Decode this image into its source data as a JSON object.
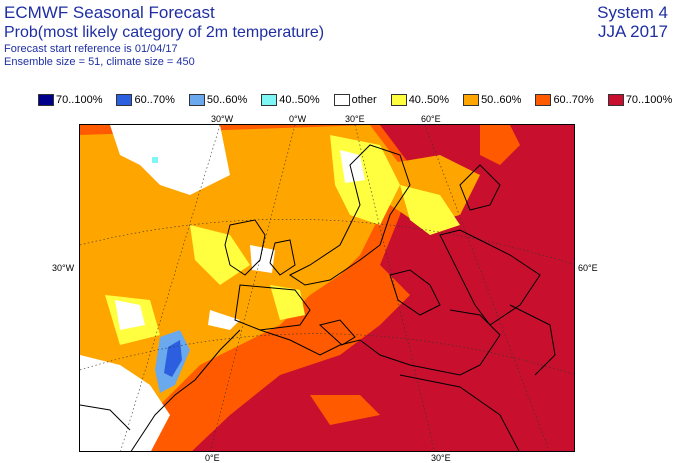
{
  "header": {
    "title": "ECMWF Seasonal Forecast",
    "subtitle": "Prob(most likely category of 2m temperature)",
    "line3": "Forecast start reference is 01/04/17",
    "line4": "Ensemble size = 51, climate size = 450",
    "system": "System 4",
    "season": "JJA 2017"
  },
  "legend": [
    {
      "label": "70..100%",
      "color": "#00008b"
    },
    {
      "label": "60..70%",
      "color": "#2b5fe0"
    },
    {
      "label": "50..60%",
      "color": "#6aa9ee"
    },
    {
      "label": "40..50%",
      "color": "#7ff5f5"
    },
    {
      "label": "other",
      "color": "#ffffff"
    },
    {
      "label": "40..50%",
      "color": "#ffff40"
    },
    {
      "label": "50..60%",
      "color": "#ffa500"
    },
    {
      "label": "60..70%",
      "color": "#ff5a00"
    },
    {
      "label": "70..100%",
      "color": "#c8102e"
    }
  ],
  "ticks_top": [
    "30°W",
    "0°W",
    "30°E",
    "60°E"
  ],
  "ticks_bottom": [
    "0°E",
    "30°E"
  ],
  "ticks_left": [
    "30°W"
  ],
  "ticks_right": [
    "60°E"
  ]
}
